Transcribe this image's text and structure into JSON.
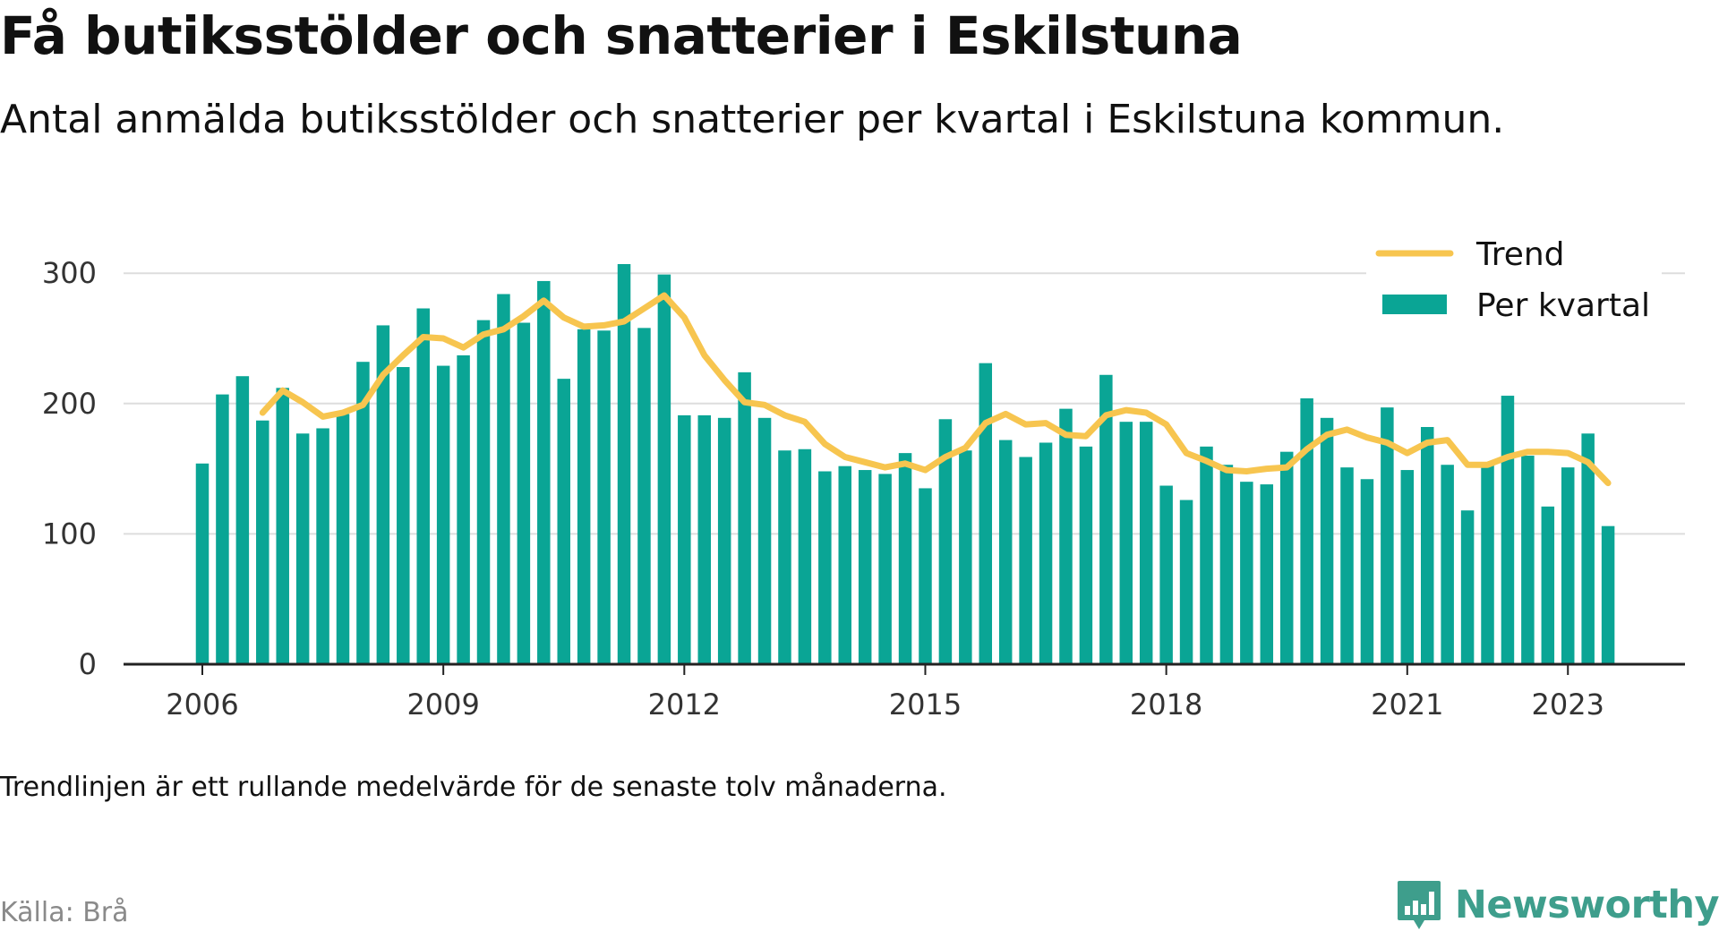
{
  "title": "Få butiksstölder och snatterier i Eskilstuna",
  "subtitle": "Antal anmälda butiksstölder och snatterier per kvartal i Eskilstuna kommun.",
  "note": "Trendlinjen är ett rullande medelvärde för de senaste tolv månaderna.",
  "source": "Källa: Brå",
  "brand": {
    "name": "Newsworthy",
    "logo_icon": "newsworthy-bar-chart-icon"
  },
  "colors": {
    "bars": "#0aa595",
    "trend": "#f7c54f",
    "brand": "#3e9e8c",
    "grid": "#dddddd",
    "axis": "#222222"
  },
  "chart_data": {
    "type": "bar",
    "title": "Få butiksstölder och snatterier i Eskilstuna",
    "subtitle": "Antal anmälda butiksstölder och snatterier per kvartal i Eskilstuna kommun.",
    "xlabel": "",
    "ylabel": "",
    "ylim": [
      0,
      320
    ],
    "yticks": [
      0,
      100,
      200,
      300
    ],
    "xticks": [
      "2006",
      "2009",
      "2012",
      "2015",
      "2018",
      "2021",
      "2023"
    ],
    "grid": true,
    "legend_position": "top-right",
    "x_start": "2006 Q1",
    "x_frequency": "quarterly",
    "categories": [
      "2006 Q1",
      "2006 Q2",
      "2006 Q3",
      "2006 Q4",
      "2007 Q1",
      "2007 Q2",
      "2007 Q3",
      "2007 Q4",
      "2008 Q1",
      "2008 Q2",
      "2008 Q3",
      "2008 Q4",
      "2009 Q1",
      "2009 Q2",
      "2009 Q3",
      "2009 Q4",
      "2010 Q1",
      "2010 Q2",
      "2010 Q3",
      "2010 Q4",
      "2011 Q1",
      "2011 Q2",
      "2011 Q3",
      "2011 Q4",
      "2012 Q1",
      "2012 Q2",
      "2012 Q3",
      "2012 Q4",
      "2013 Q1",
      "2013 Q2",
      "2013 Q3",
      "2013 Q4",
      "2014 Q1",
      "2014 Q2",
      "2014 Q3",
      "2014 Q4",
      "2015 Q1",
      "2015 Q2",
      "2015 Q3",
      "2015 Q4",
      "2016 Q1",
      "2016 Q2",
      "2016 Q3",
      "2016 Q4",
      "2017 Q1",
      "2017 Q2",
      "2017 Q3",
      "2017 Q4",
      "2018 Q1",
      "2018 Q2",
      "2018 Q3",
      "2018 Q4",
      "2019 Q1",
      "2019 Q2",
      "2019 Q3",
      "2019 Q4",
      "2020 Q1",
      "2020 Q2",
      "2020 Q3",
      "2020 Q4",
      "2021 Q1",
      "2021 Q2",
      "2021 Q3",
      "2021 Q4",
      "2022 Q1",
      "2022 Q2",
      "2022 Q3",
      "2022 Q4",
      "2023 Q1",
      "2023 Q2",
      "2023 Q3"
    ],
    "series": [
      {
        "name": "Per kvartal",
        "type": "bar",
        "values": [
          154,
          207,
          221,
          187,
          212,
          177,
          181,
          192,
          232,
          260,
          228,
          273,
          229,
          237,
          264,
          284,
          262,
          294,
          219,
          257,
          256,
          307,
          258,
          299,
          191,
          191,
          189,
          224,
          189,
          164,
          165,
          148,
          152,
          149,
          146,
          162,
          135,
          188,
          164,
          231,
          172,
          159,
          170,
          196,
          167,
          222,
          186,
          186,
          137,
          126,
          167,
          153,
          140,
          138,
          163,
          204,
          189,
          151,
          142,
          197,
          149,
          182,
          153,
          118,
          154,
          206,
          160,
          121,
          151,
          177,
          106
        ]
      },
      {
        "name": "Trend",
        "type": "line",
        "values": [
          null,
          null,
          null,
          193,
          210,
          201,
          190,
          193,
          199,
          222,
          237,
          251,
          250,
          243,
          253,
          257,
          267,
          279,
          266,
          259,
          260,
          263,
          273,
          283,
          266,
          237,
          218,
          201,
          199,
          191,
          186,
          169,
          159,
          155,
          151,
          154,
          149,
          159,
          166,
          185,
          192,
          184,
          185,
          176,
          175,
          191,
          195,
          193,
          184,
          162,
          156,
          149,
          148,
          150,
          151,
          165,
          176,
          180,
          174,
          170,
          162,
          170,
          172,
          153,
          153,
          159,
          163,
          163,
          162,
          155,
          139
        ]
      }
    ]
  }
}
